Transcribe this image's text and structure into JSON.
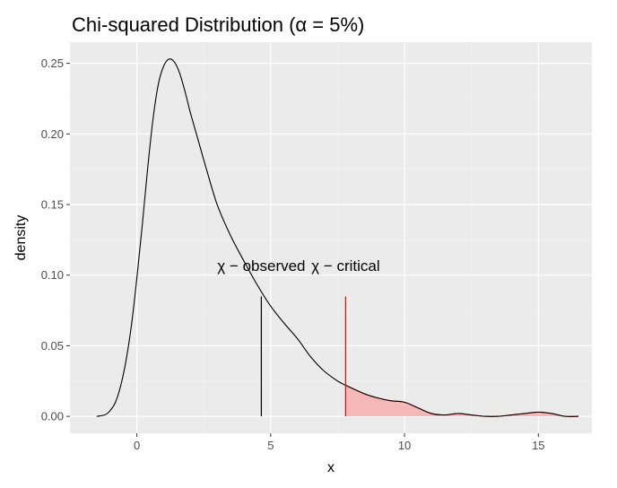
{
  "chart_data": {
    "type": "area",
    "title": "Chi-squared Distribution (α = 5%)",
    "xlabel": "x",
    "ylabel": "density",
    "xlim": [
      -2.5,
      17
    ],
    "ylim": [
      -0.012,
      0.265
    ],
    "x_ticks": [
      0,
      5,
      10,
      15
    ],
    "x_tick_labels": [
      "0",
      "5",
      "10",
      "15"
    ],
    "y_ticks": [
      0.0,
      0.05,
      0.1,
      0.15,
      0.2,
      0.25
    ],
    "y_tick_labels": [
      "0.00",
      "0.05",
      "0.10",
      "0.15",
      "0.20",
      "0.25"
    ],
    "grid": true,
    "background": "#ebebeb",
    "series": [
      {
        "type": "line",
        "color": "#000000",
        "x": [
          -1.5,
          -1.2,
          -1.0,
          -0.8,
          -0.6,
          -0.4,
          -0.2,
          0.0,
          0.2,
          0.4,
          0.6,
          0.8,
          1.0,
          1.2,
          1.4,
          1.6,
          1.8,
          2.0,
          2.3,
          2.6,
          3.0,
          3.5,
          4.0,
          4.5,
          5.0,
          5.5,
          6.0,
          6.5,
          7.0,
          7.5,
          7.8,
          8.5,
          9.0,
          9.5,
          10.0,
          10.5,
          11.0,
          11.5,
          12.0,
          12.5,
          13.0,
          13.5,
          14.0,
          14.5,
          15.0,
          15.5,
          16.0,
          16.5
        ],
        "y": [
          0.0,
          0.001,
          0.004,
          0.01,
          0.022,
          0.04,
          0.065,
          0.098,
          0.135,
          0.175,
          0.21,
          0.235,
          0.248,
          0.253,
          0.251,
          0.243,
          0.23,
          0.215,
          0.195,
          0.175,
          0.15,
          0.128,
          0.11,
          0.093,
          0.078,
          0.066,
          0.055,
          0.042,
          0.032,
          0.025,
          0.022,
          0.016,
          0.013,
          0.011,
          0.01,
          0.006,
          0.002,
          0.001,
          0.002,
          0.001,
          0.0,
          0.0,
          0.001,
          0.002,
          0.003,
          0.002,
          0.0,
          0.0
        ]
      }
    ],
    "shaded_region": {
      "x_from": 7.8,
      "x_to": 16.5,
      "fill": "#f4b8b8",
      "stroke": "#ff0000"
    },
    "vlines": [
      {
        "x": 4.65,
        "y_top": 0.085,
        "color": "#000000",
        "label": "χ − observed"
      },
      {
        "x": 7.8,
        "y_top": 0.085,
        "color": "#ff0000",
        "label": "χ − critical"
      }
    ]
  }
}
